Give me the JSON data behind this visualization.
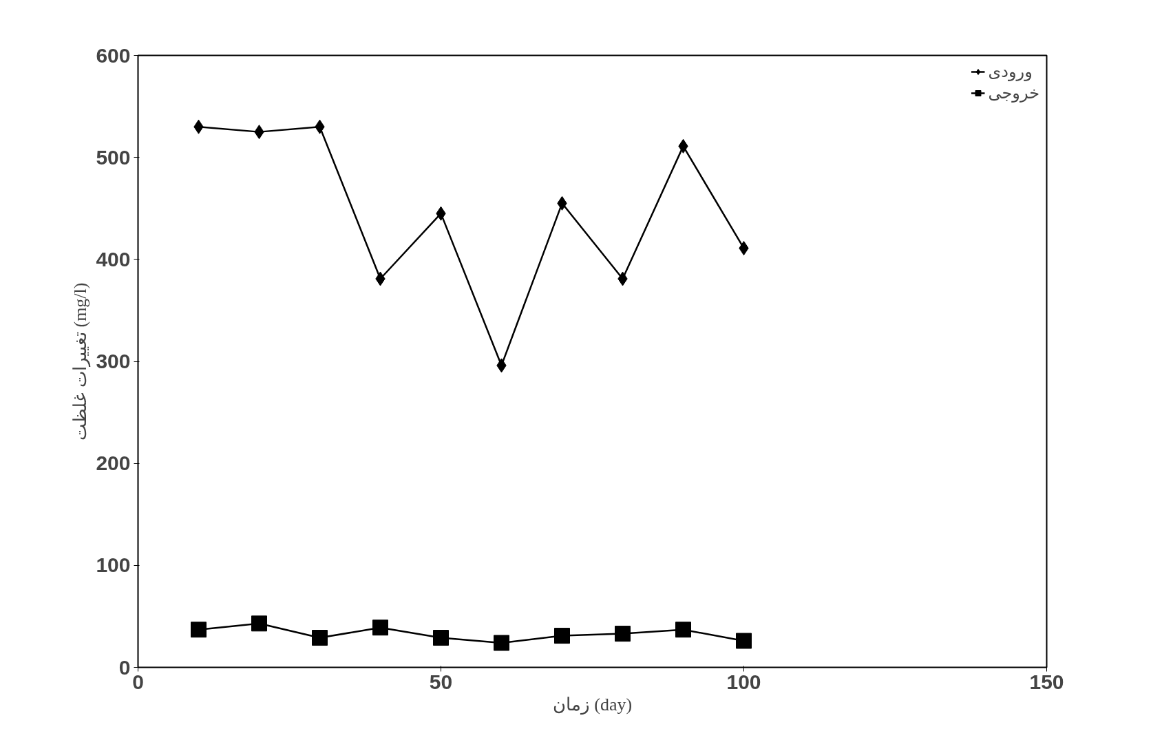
{
  "chart_data": {
    "type": "line",
    "xlabel": "زمان (day)",
    "ylabel": "تغییرات غلظت (mg/l)",
    "x": [
      10,
      20,
      30,
      40,
      50,
      60,
      70,
      80,
      90,
      100
    ],
    "series": [
      {
        "name": "ورودی",
        "color": "#000000",
        "marker": "diamond",
        "values": [
          530,
          525,
          530,
          381,
          445,
          296,
          455,
          381,
          511,
          411
        ]
      },
      {
        "name": "خروجی",
        "color": "#000000",
        "marker": "square",
        "values": [
          37,
          43,
          29,
          39,
          29,
          24,
          31,
          33,
          37,
          26
        ]
      }
    ],
    "xlim": [
      0,
      150
    ],
    "xticks": [
      0,
      50,
      100,
      150
    ],
    "ylim": [
      0,
      600
    ],
    "yticks": [
      0,
      100,
      200,
      300,
      400,
      500,
      600
    ],
    "grid": false,
    "legend": "top right",
    "line_style": "solid"
  }
}
